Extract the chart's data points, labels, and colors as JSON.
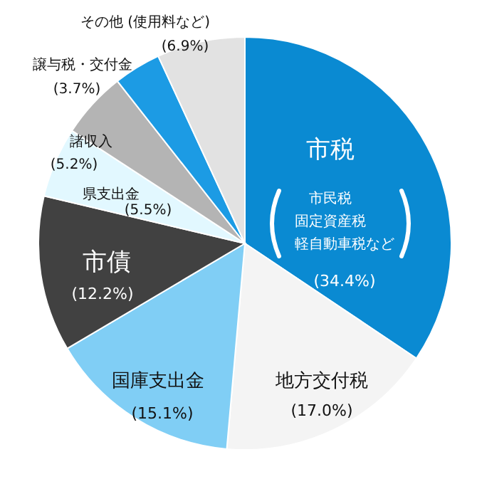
{
  "chart_data": {
    "type": "pie",
    "categories": [
      "市税",
      "地方交付税",
      "国庫支出金",
      "市債",
      "県支出金",
      "諸収入",
      "譲与税・交付金",
      "その他 (使用料など)"
    ],
    "values": [
      34.4,
      17.0,
      15.1,
      12.2,
      5.5,
      5.2,
      3.7,
      6.9
    ],
    "value_labels": [
      "(34.4%)",
      "(17.0%)",
      "(15.1%)",
      "(12.2%)",
      "(5.5%)",
      "(5.2%)",
      "(3.7%)",
      "(6.9%)"
    ],
    "colors": [
      "#0a8ad2",
      "#f4f4f4",
      "#80cef5",
      "#414141",
      "#e2f8ff",
      "#b4b4b4",
      "#1c9be4",
      "#e2e2e2"
    ],
    "annotations": [
      "市民税",
      "固定資産税",
      "軽自動車税など"
    ]
  }
}
